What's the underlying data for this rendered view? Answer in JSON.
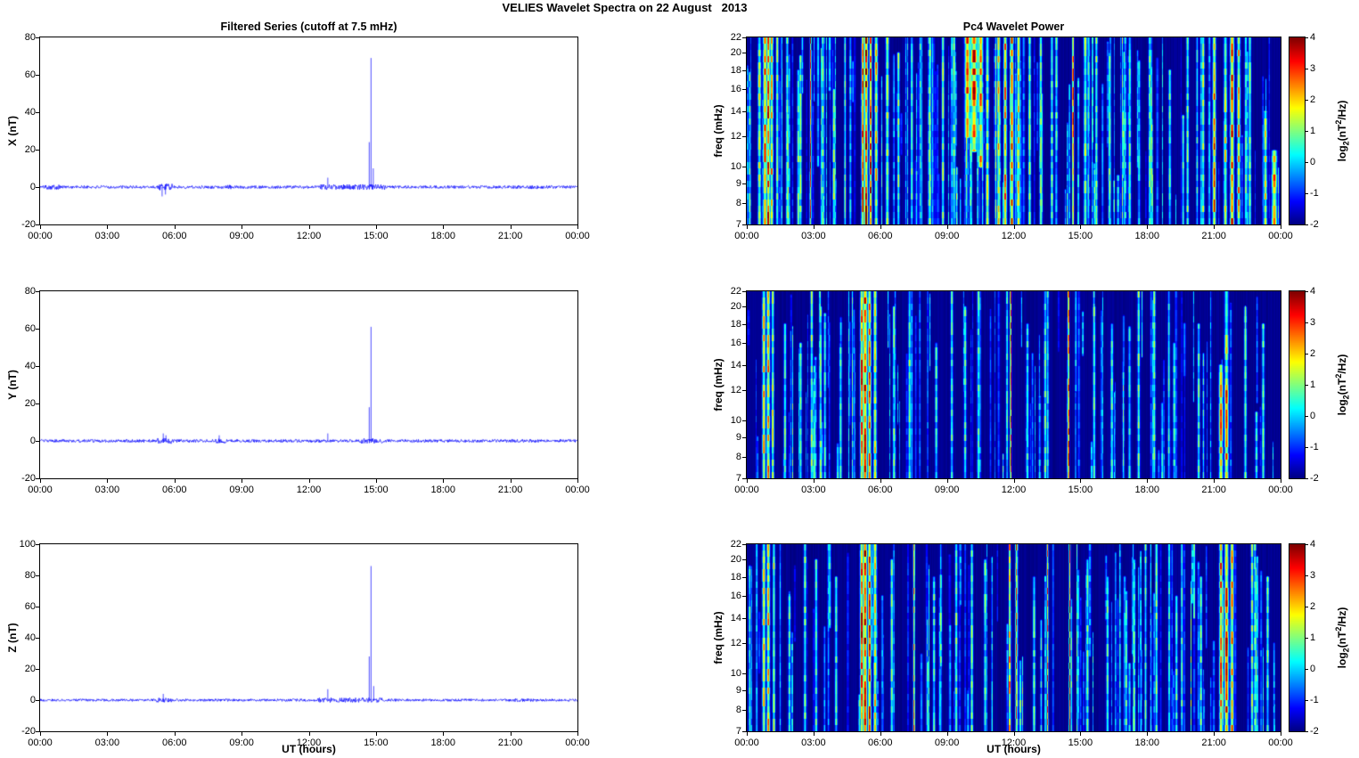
{
  "title": "VELIES Wavelet Spectra on 22 August   2013",
  "left_title": "Filtered Series (cutoff at 7.5 mHz)",
  "right_title": "Pc4 Wavelet Power",
  "xlabel": "UT (hours)",
  "x_tick_labels": [
    "00:00",
    "03:00",
    "06:00",
    "09:00",
    "12:00",
    "15:00",
    "18:00",
    "21:00",
    "00:00"
  ],
  "line_color": "#0000FF",
  "colorbar": {
    "min": -2,
    "max": 4,
    "ticks": [
      "4",
      "3",
      "2",
      "1",
      "0",
      "-1",
      "-2"
    ],
    "label_parts": {
      "p1": "log",
      "sub": "2",
      "p2": "(nT",
      "sup": "2",
      "p3": "/Hz)"
    }
  },
  "chart_data": [
    {
      "type": "line",
      "panel": "X",
      "row": 0,
      "col": "left",
      "ylabel": "X (nT)",
      "ylim": [
        -20,
        80
      ],
      "yticks": [
        -20,
        0,
        20,
        40,
        60,
        80
      ],
      "x_hours": [
        0,
        24
      ],
      "noise_amp": 0.8,
      "seed": 101,
      "bursts": [
        {
          "t0": 0.2,
          "t1": 0.9,
          "amp": 1.6
        },
        {
          "t0": 5.2,
          "t1": 5.9,
          "amp": 2.2
        },
        {
          "t0": 8.3,
          "t1": 8.7,
          "amp": 1.4
        },
        {
          "t0": 12.4,
          "t1": 15.4,
          "amp": 1.8
        },
        {
          "t0": 21.2,
          "t1": 22.2,
          "amp": 1.3
        }
      ],
      "spikes": [
        {
          "t": 14.78,
          "amp": 69
        },
        {
          "t": 14.7,
          "amp": 24
        },
        {
          "t": 14.88,
          "amp": 10
        },
        {
          "t": 12.85,
          "amp": 5
        },
        {
          "t": 5.45,
          "amp": -5
        },
        {
          "t": 5.6,
          "amp": -4
        }
      ]
    },
    {
      "type": "heatmap",
      "panel": "X",
      "row": 0,
      "col": "right",
      "ylabel": "freq (mHz)",
      "flim": [
        7,
        22
      ],
      "f_ticks": [
        22,
        20,
        18,
        16,
        14,
        12,
        10,
        9,
        8,
        7
      ],
      "x_hours": [
        0,
        24
      ],
      "vlim": [
        -2,
        4
      ],
      "background": -2,
      "seed": 11,
      "texture": {
        "count": 170,
        "vmin": -1.2,
        "vmax": 1.0
      },
      "events": [
        {
          "t": 0.55,
          "v": 1.2,
          "w": 0.05,
          "f0": 7,
          "f1": 22
        },
        {
          "t": 0.8,
          "v": 2.2,
          "w": 0.06,
          "f0": 7,
          "f1": 22
        },
        {
          "t": 0.95,
          "v": 2.8,
          "w": 0.05,
          "f0": 7,
          "f1": 22
        },
        {
          "t": 1.1,
          "v": 2.0,
          "w": 0.05,
          "f0": 7,
          "f1": 22
        },
        {
          "t": 1.35,
          "v": 1.2,
          "w": 0.04,
          "f0": 7,
          "f1": 22
        },
        {
          "t": 1.8,
          "v": 0.8,
          "w": 0.04,
          "f0": 7,
          "f1": 22
        },
        {
          "t": 2.3,
          "v": 0.9,
          "w": 0.04,
          "f0": 7,
          "f1": 18
        },
        {
          "t": 2.85,
          "v": 2.6,
          "w": 0.025,
          "f0": 7,
          "f1": 22
        },
        {
          "t": 3.4,
          "v": 0.8,
          "w": 0.04,
          "f0": 7,
          "f1": 22
        },
        {
          "t": 3.9,
          "v": 1.0,
          "w": 0.04,
          "f0": 7,
          "f1": 16
        },
        {
          "t": 4.4,
          "v": 0.7,
          "w": 0.03,
          "f0": 7,
          "f1": 22
        },
        {
          "t": 5.2,
          "v": 3.2,
          "w": 0.04,
          "f0": 7,
          "f1": 22
        },
        {
          "t": 5.35,
          "v": 3.6,
          "w": 0.05,
          "f0": 7,
          "f1": 22
        },
        {
          "t": 5.55,
          "v": 3.0,
          "w": 0.04,
          "f0": 7,
          "f1": 22
        },
        {
          "t": 5.8,
          "v": 1.8,
          "w": 0.05,
          "f0": 7,
          "f1": 22
        },
        {
          "t": 6.3,
          "v": 1.0,
          "w": 0.05,
          "f0": 7,
          "f1": 22
        },
        {
          "t": 6.8,
          "v": 0.8,
          "w": 0.04,
          "f0": 7,
          "f1": 20
        },
        {
          "t": 7.4,
          "v": 0.6,
          "w": 0.04,
          "f0": 7,
          "f1": 22
        },
        {
          "t": 8.2,
          "v": 0.7,
          "w": 0.05,
          "f0": 7,
          "f1": 22
        },
        {
          "t": 8.8,
          "v": 0.9,
          "w": 0.04,
          "f0": 7,
          "f1": 22
        },
        {
          "t": 9.3,
          "v": 0.8,
          "w": 0.04,
          "f0": 7,
          "f1": 22
        },
        {
          "t": 9.9,
          "v": 2.2,
          "w": 0.08,
          "f0": 12,
          "f1": 22
        },
        {
          "t": 10.2,
          "v": 2.6,
          "w": 0.1,
          "f0": 11,
          "f1": 22
        },
        {
          "t": 10.5,
          "v": 2.0,
          "w": 0.07,
          "f0": 10,
          "f1": 22
        },
        {
          "t": 10.8,
          "v": 1.2,
          "w": 0.05,
          "f0": 7,
          "f1": 22
        },
        {
          "t": 11.3,
          "v": 1.6,
          "w": 0.05,
          "f0": 7,
          "f1": 22
        },
        {
          "t": 11.6,
          "v": 2.2,
          "w": 0.05,
          "f0": 7,
          "f1": 22
        },
        {
          "t": 11.9,
          "v": 2.4,
          "w": 0.05,
          "f0": 7,
          "f1": 22
        },
        {
          "t": 12.2,
          "v": 1.6,
          "w": 0.05,
          "f0": 7,
          "f1": 22
        },
        {
          "t": 12.7,
          "v": 1.0,
          "w": 0.04,
          "f0": 7,
          "f1": 22
        },
        {
          "t": 13.2,
          "v": 0.9,
          "w": 0.04,
          "f0": 7,
          "f1": 22
        },
        {
          "t": 13.7,
          "v": 0.8,
          "w": 0.04,
          "f0": 7,
          "f1": 22
        },
        {
          "t": 14.65,
          "v": 3.0,
          "w": 0.03,
          "f0": 7,
          "f1": 22
        },
        {
          "t": 15.2,
          "v": 1.0,
          "w": 0.05,
          "f0": 7,
          "f1": 22
        },
        {
          "t": 15.7,
          "v": 0.9,
          "w": 0.04,
          "f0": 7,
          "f1": 22
        },
        {
          "t": 16.3,
          "v": 0.7,
          "w": 0.04,
          "f0": 7,
          "f1": 20
        },
        {
          "t": 17.2,
          "v": 0.6,
          "w": 0.04,
          "f0": 7,
          "f1": 22
        },
        {
          "t": 18.1,
          "v": 0.7,
          "w": 0.04,
          "f0": 7,
          "f1": 22
        },
        {
          "t": 19.0,
          "v": 0.6,
          "w": 0.04,
          "f0": 7,
          "f1": 18
        },
        {
          "t": 19.8,
          "v": 0.8,
          "w": 0.04,
          "f0": 7,
          "f1": 22
        },
        {
          "t": 20.5,
          "v": 1.0,
          "w": 0.04,
          "f0": 7,
          "f1": 22
        },
        {
          "t": 21.0,
          "v": 2.4,
          "w": 0.05,
          "f0": 7,
          "f1": 22
        },
        {
          "t": 21.5,
          "v": 1.4,
          "w": 0.05,
          "f0": 7,
          "f1": 22
        },
        {
          "t": 21.8,
          "v": 2.6,
          "w": 0.06,
          "f0": 7,
          "f1": 22
        },
        {
          "t": 22.1,
          "v": 2.0,
          "w": 0.05,
          "f0": 7,
          "f1": 22
        },
        {
          "t": 22.6,
          "v": 1.0,
          "w": 0.04,
          "f0": 7,
          "f1": 22
        },
        {
          "t": 23.3,
          "v": 1.4,
          "w": 0.05,
          "f0": 7,
          "f1": 14
        },
        {
          "t": 23.7,
          "v": 2.2,
          "w": 0.08,
          "f0": 7,
          "f1": 11
        }
      ]
    },
    {
      "type": "line",
      "panel": "Y",
      "row": 1,
      "col": "left",
      "ylabel": "Y (nT)",
      "ylim": [
        -20,
        80
      ],
      "yticks": [
        -20,
        0,
        20,
        40,
        60,
        80
      ],
      "x_hours": [
        0,
        24
      ],
      "noise_amp": 0.8,
      "seed": 102,
      "bursts": [
        {
          "t0": 5.2,
          "t1": 5.9,
          "amp": 2.0
        },
        {
          "t0": 7.8,
          "t1": 8.3,
          "amp": 1.5
        },
        {
          "t0": 14.3,
          "t1": 15.3,
          "amp": 1.7
        }
      ],
      "spikes": [
        {
          "t": 14.78,
          "amp": 61
        },
        {
          "t": 14.7,
          "amp": 18
        },
        {
          "t": 5.5,
          "amp": 4
        },
        {
          "t": 5.62,
          "amp": 3
        },
        {
          "t": 8.0,
          "amp": 3
        },
        {
          "t": 12.85,
          "amp": 4
        }
      ]
    },
    {
      "type": "heatmap",
      "panel": "Y",
      "row": 1,
      "col": "right",
      "ylabel": "freq (mHz)",
      "flim": [
        7,
        22
      ],
      "f_ticks": [
        22,
        20,
        18,
        16,
        14,
        12,
        10,
        9,
        8,
        7
      ],
      "x_hours": [
        0,
        24
      ],
      "vlim": [
        -2,
        4
      ],
      "background": -2,
      "seed": 22,
      "texture": {
        "count": 110,
        "vmin": -1.2,
        "vmax": 0.6
      },
      "events": [
        {
          "t": 0.75,
          "v": 1.8,
          "w": 0.05,
          "f0": 7,
          "f1": 22
        },
        {
          "t": 0.95,
          "v": 2.0,
          "w": 0.05,
          "f0": 7,
          "f1": 22
        },
        {
          "t": 1.15,
          "v": 1.4,
          "w": 0.04,
          "f0": 7,
          "f1": 22
        },
        {
          "t": 1.7,
          "v": 0.7,
          "w": 0.04,
          "f0": 7,
          "f1": 18
        },
        {
          "t": 2.4,
          "v": 0.6,
          "w": 0.04,
          "f0": 7,
          "f1": 16
        },
        {
          "t": 2.9,
          "v": 0.9,
          "w": 0.04,
          "f0": 7,
          "f1": 22
        },
        {
          "t": 3.3,
          "v": 0.7,
          "w": 0.04,
          "f0": 7,
          "f1": 20
        },
        {
          "t": 4.2,
          "v": 0.5,
          "w": 0.04,
          "f0": 7,
          "f1": 16
        },
        {
          "t": 5.15,
          "v": 2.6,
          "w": 0.05,
          "f0": 7,
          "f1": 22
        },
        {
          "t": 5.3,
          "v": 3.4,
          "w": 0.06,
          "f0": 7,
          "f1": 12
        },
        {
          "t": 5.3,
          "v": 2.6,
          "w": 0.07,
          "f0": 7,
          "f1": 22
        },
        {
          "t": 5.5,
          "v": 2.2,
          "w": 0.05,
          "f0": 7,
          "f1": 22
        },
        {
          "t": 5.75,
          "v": 1.4,
          "w": 0.05,
          "f0": 7,
          "f1": 22
        },
        {
          "t": 6.6,
          "v": 0.7,
          "w": 0.04,
          "f0": 7,
          "f1": 20
        },
        {
          "t": 7.3,
          "v": 0.8,
          "w": 0.04,
          "f0": 7,
          "f1": 22
        },
        {
          "t": 8.5,
          "v": 0.5,
          "w": 0.04,
          "f0": 7,
          "f1": 16
        },
        {
          "t": 9.2,
          "v": 0.7,
          "w": 0.04,
          "f0": 7,
          "f1": 22
        },
        {
          "t": 9.8,
          "v": 0.6,
          "w": 0.04,
          "f0": 7,
          "f1": 20
        },
        {
          "t": 10.4,
          "v": 0.7,
          "w": 0.04,
          "f0": 7,
          "f1": 22
        },
        {
          "t": 11.85,
          "v": 2.8,
          "w": 0.025,
          "f0": 7,
          "f1": 22
        },
        {
          "t": 12.6,
          "v": 0.6,
          "w": 0.04,
          "f0": 7,
          "f1": 18
        },
        {
          "t": 13.4,
          "v": 0.7,
          "w": 0.04,
          "f0": 7,
          "f1": 22
        },
        {
          "t": 14.45,
          "v": 3.4,
          "w": 0.025,
          "f0": 7,
          "f1": 22
        },
        {
          "t": 15.6,
          "v": 0.7,
          "w": 0.04,
          "f0": 7,
          "f1": 20
        },
        {
          "t": 16.4,
          "v": 0.6,
          "w": 0.04,
          "f0": 7,
          "f1": 18
        },
        {
          "t": 17.6,
          "v": 0.8,
          "w": 0.04,
          "f0": 7,
          "f1": 22
        },
        {
          "t": 18.3,
          "v": 0.7,
          "w": 0.04,
          "f0": 7,
          "f1": 22
        },
        {
          "t": 19.2,
          "v": 0.5,
          "w": 0.04,
          "f0": 7,
          "f1": 16
        },
        {
          "t": 20.3,
          "v": 0.6,
          "w": 0.04,
          "f0": 7,
          "f1": 18
        },
        {
          "t": 21.3,
          "v": 2.2,
          "w": 0.06,
          "f0": 7,
          "f1": 14
        },
        {
          "t": 21.55,
          "v": 2.6,
          "w": 0.06,
          "f0": 7,
          "f1": 12
        },
        {
          "t": 21.55,
          "v": 1.4,
          "w": 0.06,
          "f0": 7,
          "f1": 22
        },
        {
          "t": 22.4,
          "v": 0.8,
          "w": 0.04,
          "f0": 7,
          "f1": 20
        },
        {
          "t": 23.2,
          "v": 0.6,
          "w": 0.04,
          "f0": 7,
          "f1": 18
        }
      ]
    },
    {
      "type": "line",
      "panel": "Z",
      "row": 2,
      "col": "left",
      "ylabel": "Z (nT)",
      "ylim": [
        -20,
        100
      ],
      "yticks": [
        -20,
        0,
        20,
        40,
        60,
        80,
        100
      ],
      "x_hours": [
        0,
        24
      ],
      "noise_amp": 0.8,
      "seed": 103,
      "bursts": [
        {
          "t0": 5.2,
          "t1": 5.9,
          "amp": 1.8
        },
        {
          "t0": 12.4,
          "t1": 15.3,
          "amp": 1.9
        },
        {
          "t0": 21.2,
          "t1": 22.2,
          "amp": 1.4
        }
      ],
      "spikes": [
        {
          "t": 14.78,
          "amp": 86
        },
        {
          "t": 14.7,
          "amp": 28
        },
        {
          "t": 14.9,
          "amp": 9
        },
        {
          "t": 12.85,
          "amp": 7
        },
        {
          "t": 5.5,
          "amp": 4
        }
      ]
    },
    {
      "type": "heatmap",
      "panel": "Z",
      "row": 2,
      "col": "right",
      "ylabel": "freq (mHz)",
      "flim": [
        7,
        22
      ],
      "f_ticks": [
        22,
        20,
        18,
        16,
        14,
        12,
        10,
        9,
        8,
        7
      ],
      "x_hours": [
        0,
        24
      ],
      "vlim": [
        -2,
        4
      ],
      "background": -2,
      "seed": 33,
      "texture": {
        "count": 125,
        "vmin": -1.2,
        "vmax": 0.8
      },
      "events": [
        {
          "t": 0.75,
          "v": 1.6,
          "w": 0.05,
          "f0": 7,
          "f1": 22
        },
        {
          "t": 0.95,
          "v": 1.9,
          "w": 0.05,
          "f0": 7,
          "f1": 22
        },
        {
          "t": 1.2,
          "v": 1.3,
          "w": 0.04,
          "f0": 7,
          "f1": 22
        },
        {
          "t": 1.9,
          "v": 0.6,
          "w": 0.04,
          "f0": 7,
          "f1": 16
        },
        {
          "t": 2.6,
          "v": 1.0,
          "w": 0.04,
          "f0": 7,
          "f1": 22
        },
        {
          "t": 3.1,
          "v": 0.7,
          "w": 0.04,
          "f0": 7,
          "f1": 20
        },
        {
          "t": 4.0,
          "v": 0.6,
          "w": 0.04,
          "f0": 7,
          "f1": 18
        },
        {
          "t": 5.15,
          "v": 2.8,
          "w": 0.05,
          "f0": 7,
          "f1": 22
        },
        {
          "t": 5.3,
          "v": 3.2,
          "w": 0.06,
          "f0": 7,
          "f1": 22
        },
        {
          "t": 5.5,
          "v": 2.6,
          "w": 0.05,
          "f0": 7,
          "f1": 22
        },
        {
          "t": 5.75,
          "v": 1.6,
          "w": 0.05,
          "f0": 7,
          "f1": 22
        },
        {
          "t": 6.5,
          "v": 0.7,
          "w": 0.04,
          "f0": 7,
          "f1": 20
        },
        {
          "t": 7.5,
          "v": 2.2,
          "w": 0.03,
          "f0": 7,
          "f1": 22
        },
        {
          "t": 8.4,
          "v": 0.6,
          "w": 0.04,
          "f0": 7,
          "f1": 18
        },
        {
          "t": 9.4,
          "v": 0.8,
          "w": 0.04,
          "f0": 7,
          "f1": 22
        },
        {
          "t": 10.1,
          "v": 0.9,
          "w": 0.04,
          "f0": 7,
          "f1": 22
        },
        {
          "t": 10.7,
          "v": 0.7,
          "w": 0.04,
          "f0": 7,
          "f1": 20
        },
        {
          "t": 11.8,
          "v": 2.6,
          "w": 0.03,
          "f0": 7,
          "f1": 22
        },
        {
          "t": 12.1,
          "v": 2.2,
          "w": 0.03,
          "f0": 7,
          "f1": 22
        },
        {
          "t": 12.9,
          "v": 0.7,
          "w": 0.04,
          "f0": 7,
          "f1": 18
        },
        {
          "t": 13.5,
          "v": 2.4,
          "w": 0.025,
          "f0": 7,
          "f1": 22
        },
        {
          "t": 14.5,
          "v": 3.2,
          "w": 0.025,
          "f0": 7,
          "f1": 22
        },
        {
          "t": 15.3,
          "v": 0.7,
          "w": 0.04,
          "f0": 7,
          "f1": 20
        },
        {
          "t": 16.2,
          "v": 0.6,
          "w": 0.04,
          "f0": 7,
          "f1": 18
        },
        {
          "t": 17.4,
          "v": 0.6,
          "w": 0.04,
          "f0": 7,
          "f1": 20
        },
        {
          "t": 18.4,
          "v": 0.8,
          "w": 0.04,
          "f0": 7,
          "f1": 22
        },
        {
          "t": 19.3,
          "v": 0.6,
          "w": 0.04,
          "f0": 7,
          "f1": 16
        },
        {
          "t": 20.4,
          "v": 0.7,
          "w": 0.04,
          "f0": 7,
          "f1": 18
        },
        {
          "t": 21.3,
          "v": 2.4,
          "w": 0.05,
          "f0": 7,
          "f1": 22
        },
        {
          "t": 21.55,
          "v": 3.0,
          "w": 0.06,
          "f0": 7,
          "f1": 22
        },
        {
          "t": 21.8,
          "v": 2.2,
          "w": 0.05,
          "f0": 7,
          "f1": 22
        },
        {
          "t": 22.7,
          "v": 0.9,
          "w": 0.04,
          "f0": 7,
          "f1": 22
        },
        {
          "t": 23.4,
          "v": 0.7,
          "w": 0.04,
          "f0": 7,
          "f1": 18
        }
      ]
    }
  ]
}
